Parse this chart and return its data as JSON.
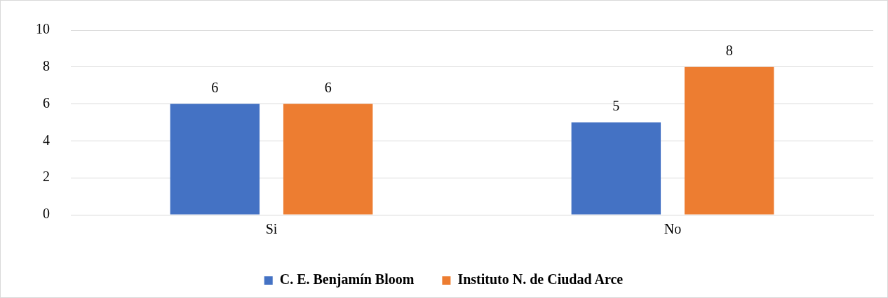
{
  "chart_data": {
    "type": "bar",
    "categories": [
      "Si",
      "No"
    ],
    "series": [
      {
        "name": "C. E. Benjamín Bloom",
        "color": "#4472c4",
        "values": [
          6,
          5
        ]
      },
      {
        "name": "Instituto N. de Ciudad Arce",
        "color": "#ed7d31",
        "values": [
          6,
          8
        ]
      }
    ],
    "ylim": [
      0,
      10
    ],
    "yticks": [
      0,
      2,
      4,
      6,
      8,
      10
    ],
    "grid": "y",
    "legend": "bottom",
    "data_labels": true
  }
}
